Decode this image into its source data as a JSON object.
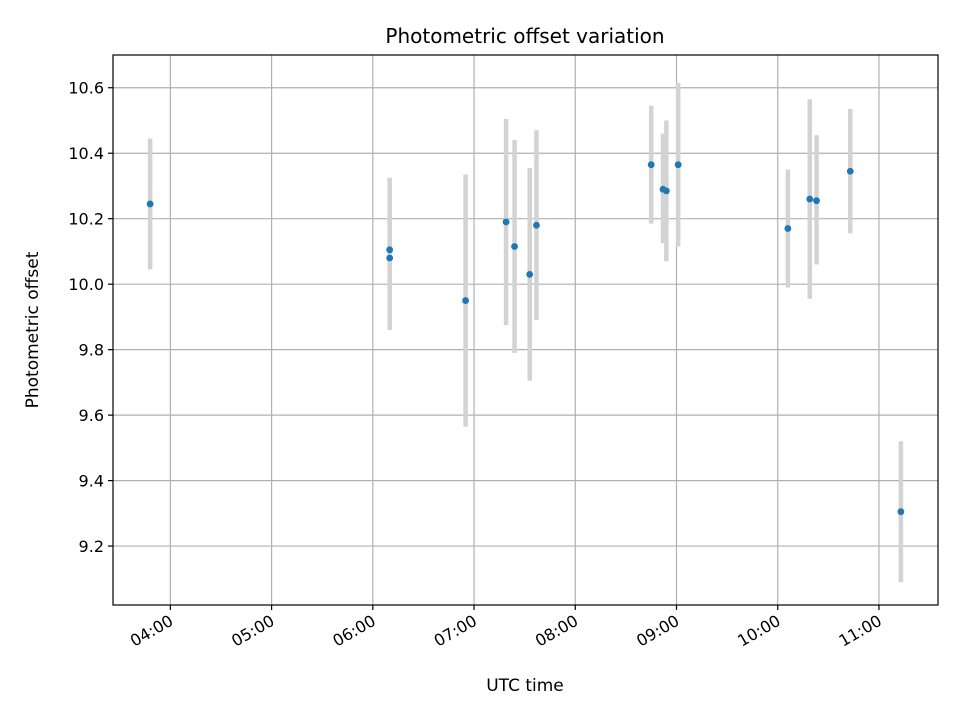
{
  "chart_data": {
    "type": "scatter",
    "title": "Photometric offset variation",
    "xlabel": "UTC time",
    "ylabel": "Photometric offset",
    "xlim": [
      "03:26",
      "11:35"
    ],
    "ylim": [
      9.02,
      10.7
    ],
    "x_ticks": [
      "04:00",
      "05:00",
      "06:00",
      "07:00",
      "08:00",
      "09:00",
      "10:00",
      "11:00"
    ],
    "y_ticks": [
      9.2,
      9.4,
      9.6,
      9.8,
      10.0,
      10.2,
      10.4,
      10.6
    ],
    "grid": true,
    "point_color": "#1f77b4",
    "errorbar_color": "#d3d3d3",
    "points": [
      {
        "time": "03:48",
        "value": 10.245,
        "low": 10.045,
        "high": 10.445
      },
      {
        "time": "06:10",
        "value": 10.105,
        "low": 9.88,
        "high": 10.325
      },
      {
        "time": "06:10",
        "value": 10.08,
        "low": 9.86,
        "high": 10.3
      },
      {
        "time": "06:55",
        "value": 9.95,
        "low": 9.565,
        "high": 10.335
      },
      {
        "time": "07:19",
        "value": 10.19,
        "low": 9.875,
        "high": 10.505
      },
      {
        "time": "07:24",
        "value": 10.115,
        "low": 9.79,
        "high": 10.44
      },
      {
        "time": "07:33",
        "value": 10.03,
        "low": 9.705,
        "high": 10.355
      },
      {
        "time": "07:37",
        "value": 10.18,
        "low": 9.89,
        "high": 10.47
      },
      {
        "time": "08:45",
        "value": 10.365,
        "low": 10.185,
        "high": 10.545
      },
      {
        "time": "08:52",
        "value": 10.29,
        "low": 10.125,
        "high": 10.46
      },
      {
        "time": "08:54",
        "value": 10.285,
        "low": 10.07,
        "high": 10.5
      },
      {
        "time": "09:01",
        "value": 10.365,
        "low": 10.115,
        "high": 10.615
      },
      {
        "time": "10:06",
        "value": 10.17,
        "low": 9.99,
        "high": 10.35
      },
      {
        "time": "10:19",
        "value": 10.26,
        "low": 9.955,
        "high": 10.565
      },
      {
        "time": "10:23",
        "value": 10.255,
        "low": 10.06,
        "high": 10.455
      },
      {
        "time": "10:43",
        "value": 10.345,
        "low": 10.155,
        "high": 10.535
      },
      {
        "time": "11:13",
        "value": 9.305,
        "low": 9.09,
        "high": 9.52
      }
    ]
  }
}
